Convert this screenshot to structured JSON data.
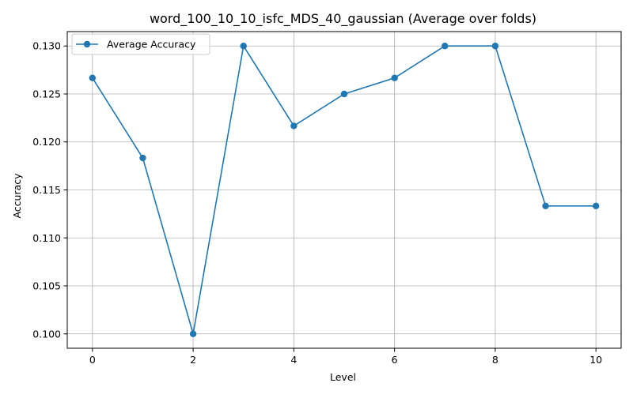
{
  "chart_data": {
    "type": "line",
    "title": "word_100_10_10_isfc_MDS_40_gaussian (Average over folds)",
    "xlabel": "Level",
    "ylabel": "Accuracy",
    "x": [
      0,
      1,
      2,
      3,
      4,
      5,
      6,
      7,
      8,
      9,
      10
    ],
    "series": [
      {
        "name": "Average Accuracy",
        "values": [
          0.12667,
          0.11833,
          0.1,
          0.13,
          0.12167,
          0.125,
          0.12667,
          0.13,
          0.13,
          0.11333,
          0.11333
        ],
        "color": "#1f77b4",
        "marker": "circle"
      }
    ],
    "xlim": [
      -0.5,
      10.5
    ],
    "ylim": [
      0.0985,
      0.1315
    ],
    "xticks": [
      0,
      2,
      4,
      6,
      8,
      10
    ],
    "xtick_labels": [
      "0",
      "2",
      "4",
      "6",
      "8",
      "10"
    ],
    "yticks": [
      0.1,
      0.105,
      0.11,
      0.115,
      0.12,
      0.125,
      0.13
    ],
    "ytick_labels": [
      "0.100",
      "0.105",
      "0.110",
      "0.115",
      "0.120",
      "0.125",
      "0.130"
    ],
    "grid": true,
    "legend_position": "top-left"
  }
}
